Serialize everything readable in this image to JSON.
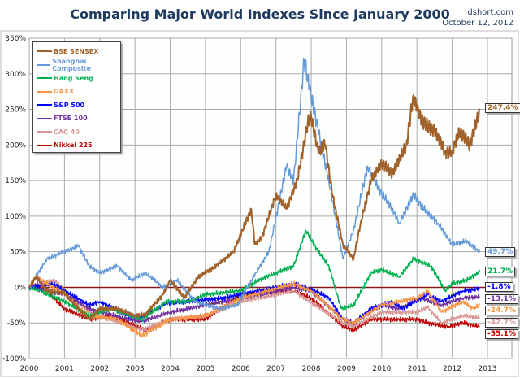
{
  "header": {
    "title": "Comparing Major World Indexes Since January 2000",
    "source": "dshort.com",
    "date": "October 12, 2012"
  },
  "chart_data": {
    "type": "line",
    "title": "Comparing Major World Indexes Since January 2000",
    "xlabel": "",
    "ylabel": "",
    "xlim": [
      2000,
      2013
    ],
    "ylim": [
      -100,
      350
    ],
    "x_ticks": [
      "2000",
      "2001",
      "2002",
      "2003",
      "2004",
      "2005",
      "2006",
      "2007",
      "2008",
      "2009",
      "2010",
      "2011",
      "2012",
      "2013"
    ],
    "y_ticks": [
      "350%",
      "300%",
      "250%",
      "200%",
      "150%",
      "100%",
      "50%",
      "0%",
      "-50%",
      "-100%"
    ],
    "grid": true,
    "legend_placement": "top-left",
    "series": [
      {
        "name": "BSE SENSEX",
        "color": "#a0622a",
        "end_label": "247.4%",
        "points": [
          [
            2000,
            0
          ],
          [
            2000.2,
            15
          ],
          [
            2000.5,
            -5
          ],
          [
            2001.0,
            -8
          ],
          [
            2001.2,
            -20
          ],
          [
            2001.7,
            -45
          ],
          [
            2002.0,
            -30
          ],
          [
            2002.5,
            -30
          ],
          [
            2003.0,
            -40
          ],
          [
            2003.3,
            -38
          ],
          [
            2003.8,
            -10
          ],
          [
            2004.0,
            10
          ],
          [
            2004.4,
            -15
          ],
          [
            2004.8,
            15
          ],
          [
            2005.3,
            30
          ],
          [
            2005.8,
            50
          ],
          [
            2006.3,
            110
          ],
          [
            2006.4,
            60
          ],
          [
            2006.6,
            70
          ],
          [
            2007.0,
            130
          ],
          [
            2007.3,
            110
          ],
          [
            2007.6,
            150
          ],
          [
            2007.9,
            230
          ],
          [
            2008.0,
            240
          ],
          [
            2008.2,
            190
          ],
          [
            2008.4,
            200
          ],
          [
            2008.6,
            130
          ],
          [
            2008.9,
            60
          ],
          [
            2009.2,
            40
          ],
          [
            2009.4,
            90
          ],
          [
            2009.7,
            150
          ],
          [
            2010.0,
            175
          ],
          [
            2010.3,
            160
          ],
          [
            2010.7,
            200
          ],
          [
            2010.9,
            270
          ],
          [
            2011.0,
            250
          ],
          [
            2011.2,
            230
          ],
          [
            2011.5,
            220
          ],
          [
            2011.8,
            190
          ],
          [
            2012.0,
            190
          ],
          [
            2012.2,
            220
          ],
          [
            2012.5,
            200
          ],
          [
            2012.78,
            247.4
          ]
        ]
      },
      {
        "name": "Shanghai Composite",
        "color": "#6699d8",
        "end_label": "49.7%",
        "points": [
          [
            2000,
            0
          ],
          [
            2000.5,
            40
          ],
          [
            2001.0,
            50
          ],
          [
            2001.4,
            58
          ],
          [
            2001.7,
            30
          ],
          [
            2002.0,
            20
          ],
          [
            2002.5,
            30
          ],
          [
            2002.9,
            10
          ],
          [
            2003.3,
            20
          ],
          [
            2003.8,
            0
          ],
          [
            2004.2,
            10
          ],
          [
            2004.7,
            -20
          ],
          [
            2005.4,
            -30
          ],
          [
            2005.9,
            -25
          ],
          [
            2006.3,
            10
          ],
          [
            2006.8,
            50
          ],
          [
            2007.3,
            170
          ],
          [
            2007.5,
            150
          ],
          [
            2007.8,
            320
          ],
          [
            2007.95,
            280
          ],
          [
            2008.2,
            220
          ],
          [
            2008.5,
            150
          ],
          [
            2008.9,
            40
          ],
          [
            2009.2,
            80
          ],
          [
            2009.6,
            170
          ],
          [
            2009.9,
            140
          ],
          [
            2010.3,
            110
          ],
          [
            2010.5,
            90
          ],
          [
            2010.9,
            130
          ],
          [
            2011.2,
            110
          ],
          [
            2011.6,
            90
          ],
          [
            2012.0,
            60
          ],
          [
            2012.4,
            65
          ],
          [
            2012.78,
            49.7
          ]
        ]
      },
      {
        "name": "Hang Seng",
        "color": "#00b050",
        "end_label": "21.7%",
        "points": [
          [
            2000,
            0
          ],
          [
            2000.3,
            -5
          ],
          [
            2001.0,
            -20
          ],
          [
            2001.7,
            -40
          ],
          [
            2002.3,
            -30
          ],
          [
            2003.2,
            -45
          ],
          [
            2003.9,
            -20
          ],
          [
            2004.5,
            -20
          ],
          [
            2005.0,
            -10
          ],
          [
            2006.0,
            -5
          ],
          [
            2006.5,
            10
          ],
          [
            2007.0,
            20
          ],
          [
            2007.5,
            30
          ],
          [
            2007.85,
            80
          ],
          [
            2008.2,
            50
          ],
          [
            2008.5,
            30
          ],
          [
            2008.85,
            -30
          ],
          [
            2009.2,
            -25
          ],
          [
            2009.7,
            20
          ],
          [
            2010.0,
            25
          ],
          [
            2010.5,
            15
          ],
          [
            2010.9,
            40
          ],
          [
            2011.4,
            30
          ],
          [
            2011.8,
            -5
          ],
          [
            2012.0,
            5
          ],
          [
            2012.4,
            10
          ],
          [
            2012.78,
            21.7
          ]
        ]
      },
      {
        "name": "DAXX",
        "color": "#f79646",
        "end_label": "-24.7%",
        "points": [
          [
            2000,
            0
          ],
          [
            2000.2,
            15
          ],
          [
            2001.0,
            -10
          ],
          [
            2001.7,
            -40
          ],
          [
            2002.5,
            -45
          ],
          [
            2003.2,
            -68
          ],
          [
            2004.0,
            -45
          ],
          [
            2005.0,
            -40
          ],
          [
            2006.0,
            -15
          ],
          [
            2007.5,
            5
          ],
          [
            2008.0,
            -5
          ],
          [
            2008.9,
            -45
          ],
          [
            2009.2,
            -50
          ],
          [
            2010.0,
            -25
          ],
          [
            2011.0,
            -15
          ],
          [
            2011.3,
            -5
          ],
          [
            2011.7,
            -35
          ],
          [
            2012.3,
            -20
          ],
          [
            2012.6,
            -30
          ],
          [
            2012.78,
            -24.7
          ]
        ]
      },
      {
        "name": "S&P 500",
        "color": "#0000ff",
        "end_label": "-1.8%",
        "points": [
          [
            2000,
            0
          ],
          [
            2000.7,
            5
          ],
          [
            2001.0,
            -5
          ],
          [
            2001.7,
            -25
          ],
          [
            2002.0,
            -20
          ],
          [
            2002.8,
            -40
          ],
          [
            2003.2,
            -42
          ],
          [
            2003.9,
            -22
          ],
          [
            2004.5,
            -20
          ],
          [
            2005.5,
            -15
          ],
          [
            2006.5,
            -5
          ],
          [
            2007.5,
            5
          ],
          [
            2007.9,
            0
          ],
          [
            2008.5,
            -15
          ],
          [
            2008.9,
            -45
          ],
          [
            2009.2,
            -50
          ],
          [
            2009.7,
            -30
          ],
          [
            2010.3,
            -20
          ],
          [
            2010.6,
            -30
          ],
          [
            2011.3,
            -10
          ],
          [
            2011.7,
            -20
          ],
          [
            2012.3,
            -5
          ],
          [
            2012.78,
            -1.8
          ]
        ]
      },
      {
        "name": "FTSE 100",
        "color": "#7030a0",
        "end_label": "-13.1%",
        "points": [
          [
            2000,
            0
          ],
          [
            2001.0,
            -10
          ],
          [
            2001.7,
            -30
          ],
          [
            2002.8,
            -45
          ],
          [
            2003.2,
            -48
          ],
          [
            2004.0,
            -35
          ],
          [
            2005.0,
            -25
          ],
          [
            2006.0,
            -15
          ],
          [
            2007.5,
            0
          ],
          [
            2008.0,
            -5
          ],
          [
            2008.9,
            -45
          ],
          [
            2009.2,
            -50
          ],
          [
            2010.0,
            -25
          ],
          [
            2010.5,
            -30
          ],
          [
            2011.1,
            -15
          ],
          [
            2011.7,
            -25
          ],
          [
            2012.3,
            -15
          ],
          [
            2012.78,
            -13.1
          ]
        ]
      },
      {
        "name": "CAC 40",
        "color": "#d99694",
        "end_label": "-42.7%",
        "points": [
          [
            2000,
            0
          ],
          [
            2000.7,
            10
          ],
          [
            2001.7,
            -35
          ],
          [
            2003.2,
            -60
          ],
          [
            2004.0,
            -45
          ],
          [
            2005.0,
            -40
          ],
          [
            2006.0,
            -20
          ],
          [
            2007.5,
            -5
          ],
          [
            2008.9,
            -50
          ],
          [
            2009.2,
            -55
          ],
          [
            2010.0,
            -35
          ],
          [
            2011.0,
            -35
          ],
          [
            2011.3,
            -28
          ],
          [
            2011.7,
            -50
          ],
          [
            2012.3,
            -40
          ],
          [
            2012.78,
            -42.7
          ]
        ]
      },
      {
        "name": "Nikkei 225",
        "color": "#c00000",
        "end_label": "-55.1%",
        "points": [
          [
            2000,
            0
          ],
          [
            2000.3,
            5
          ],
          [
            2001.0,
            -30
          ],
          [
            2001.7,
            -45
          ],
          [
            2002.3,
            -40
          ],
          [
            2003.3,
            -60
          ],
          [
            2004.0,
            -45
          ],
          [
            2005.0,
            -45
          ],
          [
            2006.0,
            -10
          ],
          [
            2007.5,
            -5
          ],
          [
            2008.0,
            -15
          ],
          [
            2008.9,
            -55
          ],
          [
            2009.2,
            -60
          ],
          [
            2009.7,
            -45
          ],
          [
            2010.3,
            -45
          ],
          [
            2011.0,
            -45
          ],
          [
            2011.3,
            -50
          ],
          [
            2011.9,
            -55
          ],
          [
            2012.3,
            -50
          ],
          [
            2012.78,
            -55.1
          ]
        ]
      }
    ]
  }
}
